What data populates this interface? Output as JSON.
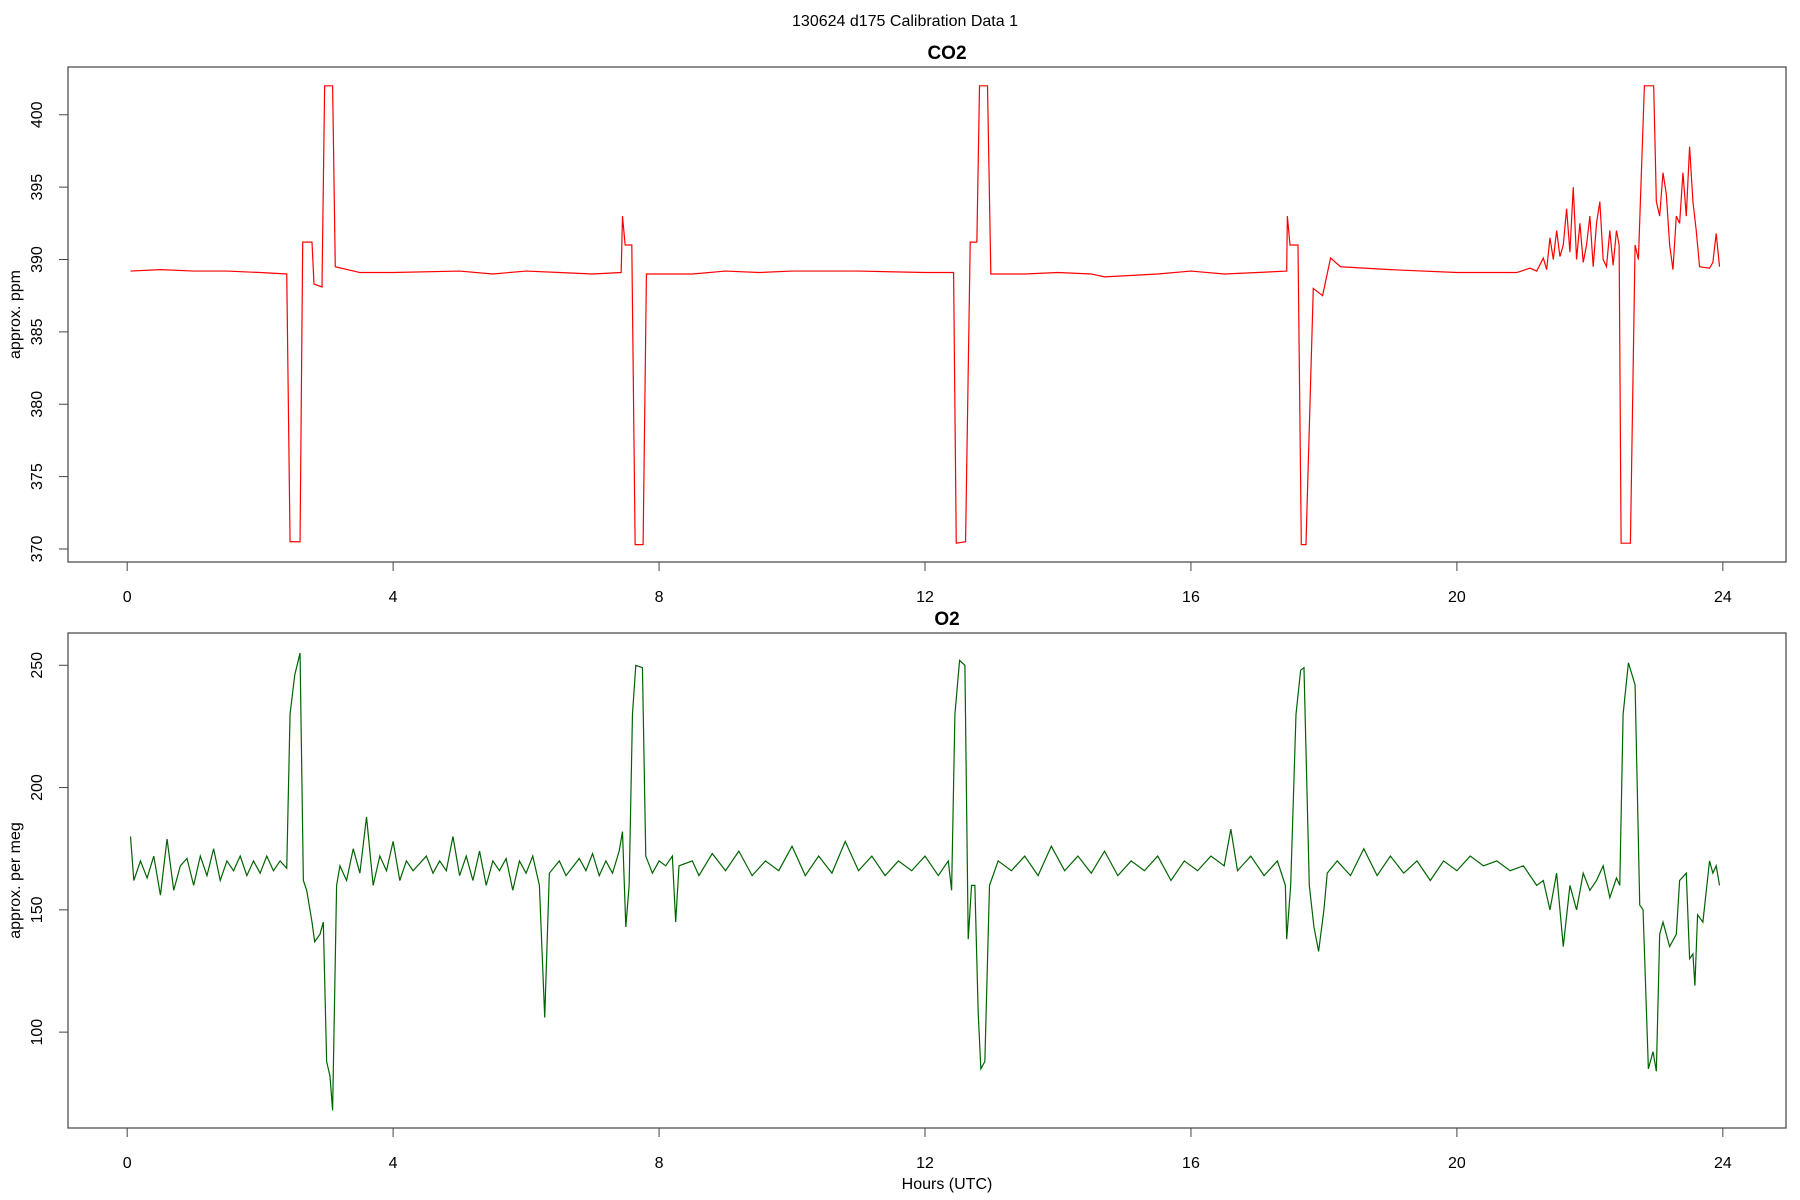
{
  "title": "130624   d175   Calibration Data 1",
  "chart_data": [
    {
      "type": "line",
      "title": "CO2",
      "ylabel": "approx. ppm",
      "color": "#ff0000",
      "xlim": [
        -0.89,
        24.95
      ],
      "xticks": [
        0,
        4,
        8,
        12,
        16,
        20,
        24
      ],
      "ylim": [
        369.1,
        403.3
      ],
      "yticks": [
        370,
        375,
        380,
        385,
        390,
        395,
        400
      ],
      "x": [
        0.05,
        0.5,
        1.0,
        1.5,
        2.0,
        2.4,
        2.45,
        2.6,
        2.64,
        2.78,
        2.81,
        2.93,
        2.97,
        3.09,
        3.13,
        3.5,
        4.0,
        5.0,
        5.5,
        6.0,
        6.5,
        7.0,
        7.43,
        7.45,
        7.49,
        7.59,
        7.64,
        7.76,
        7.81,
        8.5,
        9.0,
        9.5,
        10,
        11,
        12,
        12.43,
        12.47,
        12.61,
        12.68,
        12.78,
        12.82,
        12.94,
        12.99,
        13.5,
        14.0,
        14.5,
        14.7,
        15.5,
        16.0,
        16.5,
        17.0,
        17.44,
        17.45,
        17.49,
        17.61,
        17.66,
        17.73,
        17.84,
        17.98,
        18.1,
        18.25,
        19.0,
        20.0,
        20.9,
        21.1,
        21.2,
        21.3,
        21.35,
        21.4,
        21.45,
        21.5,
        21.55,
        21.6,
        21.65,
        21.7,
        21.75,
        21.8,
        21.85,
        21.9,
        21.95,
        22.0,
        22.05,
        22.1,
        22.15,
        22.2,
        22.25,
        22.3,
        22.35,
        22.4,
        22.44,
        22.47,
        22.61,
        22.68,
        22.73,
        22.82,
        22.96,
        23.0,
        23.05,
        23.1,
        23.15,
        23.2,
        23.25,
        23.3,
        23.35,
        23.4,
        23.45,
        23.5,
        23.55,
        23.6,
        23.65,
        23.8,
        23.85,
        23.9,
        23.95
      ],
      "values": [
        389.2,
        389.3,
        389.2,
        389.2,
        389.1,
        389.0,
        370.5,
        370.5,
        391.2,
        391.2,
        388.3,
        388.1,
        402,
        402,
        389.5,
        389.1,
        389.1,
        389.2,
        389.0,
        389.2,
        389.1,
        389.0,
        389.1,
        393,
        391,
        391,
        370.3,
        370.3,
        389.0,
        389.0,
        389.2,
        389.1,
        389.2,
        389.2,
        389.1,
        389.1,
        370.4,
        370.5,
        391.2,
        391.2,
        402,
        402,
        389.0,
        389.0,
        389.1,
        389.0,
        388.8,
        389.0,
        389.2,
        389.0,
        389.1,
        389.2,
        393,
        391,
        391,
        370.3,
        370.3,
        388,
        387.5,
        390.1,
        389.5,
        389.3,
        389.1,
        389.1,
        389.4,
        389.2,
        390.1,
        389.3,
        391.5,
        390.0,
        392.0,
        390.2,
        391.0,
        393.5,
        390.5,
        395.0,
        390.0,
        392.5,
        389.8,
        391.0,
        393.0,
        389.5,
        392.5,
        394.0,
        390.0,
        389.5,
        392.0,
        389.6,
        392.0,
        391.0,
        370.4,
        370.4,
        391.0,
        390.0,
        402,
        402,
        394.0,
        393.0,
        396.0,
        394.5,
        391.0,
        389.3,
        393.0,
        392.5,
        396.0,
        393.0,
        397.8,
        394.0,
        392.0,
        389.5,
        389.4,
        389.8,
        391.8,
        389.5
      ]
    },
    {
      "type": "line",
      "title": "O2",
      "ylabel": "approx. per meg",
      "xlabel": "Hours (UTC)",
      "color": "#006400",
      "xlim": [
        -0.89,
        24.95
      ],
      "xticks": [
        0,
        4,
        8,
        12,
        16,
        20,
        24
      ],
      "ylim": [
        60.8,
        263.2
      ],
      "yticks": [
        100,
        150,
        200,
        250
      ],
      "x": [
        0.05,
        0.1,
        0.2,
        0.3,
        0.4,
        0.5,
        0.6,
        0.7,
        0.8,
        0.9,
        1.0,
        1.1,
        1.2,
        1.3,
        1.4,
        1.5,
        1.6,
        1.7,
        1.8,
        1.9,
        2.0,
        2.1,
        2.2,
        2.3,
        2.4,
        2.45,
        2.52,
        2.6,
        2.65,
        2.7,
        2.78,
        2.82,
        2.9,
        2.95,
        3.0,
        3.05,
        3.09,
        3.15,
        3.2,
        3.3,
        3.4,
        3.5,
        3.6,
        3.7,
        3.8,
        3.9,
        4.0,
        4.1,
        4.2,
        4.3,
        4.5,
        4.6,
        4.7,
        4.8,
        4.9,
        5.0,
        5.1,
        5.2,
        5.3,
        5.4,
        5.5,
        5.6,
        5.7,
        5.8,
        5.9,
        6.0,
        6.1,
        6.2,
        6.28,
        6.35,
        6.5,
        6.6,
        6.8,
        6.9,
        7.0,
        7.1,
        7.2,
        7.3,
        7.4,
        7.45,
        7.5,
        7.55,
        7.6,
        7.65,
        7.75,
        7.8,
        7.9,
        8.0,
        8.1,
        8.2,
        8.25,
        8.3,
        8.5,
        8.6,
        8.8,
        9.0,
        9.2,
        9.4,
        9.6,
        9.8,
        10.0,
        10.2,
        10.4,
        10.6,
        10.8,
        11.0,
        11.2,
        11.4,
        11.6,
        11.8,
        12.0,
        12.2,
        12.35,
        12.4,
        12.45,
        12.52,
        12.6,
        12.65,
        12.7,
        12.75,
        12.8,
        12.84,
        12.9,
        12.97,
        13.1,
        13.3,
        13.5,
        13.7,
        13.9,
        14.1,
        14.3,
        14.5,
        14.7,
        14.9,
        15.1,
        15.3,
        15.5,
        15.7,
        15.9,
        16.1,
        16.3,
        16.5,
        16.6,
        16.7,
        16.9,
        17.1,
        17.3,
        17.42,
        17.44,
        17.5,
        17.58,
        17.65,
        17.7,
        17.78,
        17.85,
        17.92,
        18.0,
        18.05,
        18.2,
        18.4,
        18.6,
        18.8,
        19.0,
        19.2,
        19.4,
        19.6,
        19.8,
        20.0,
        20.2,
        20.4,
        20.6,
        20.8,
        21.0,
        21.2,
        21.3,
        21.4,
        21.5,
        21.6,
        21.7,
        21.8,
        21.9,
        22.0,
        22.1,
        22.2,
        22.3,
        22.4,
        22.45,
        22.5,
        22.58,
        22.68,
        22.75,
        22.8,
        22.88,
        22.95,
        23.0,
        23.05,
        23.1,
        23.2,
        23.3,
        23.35,
        23.45,
        23.5,
        23.55,
        23.58,
        23.62,
        23.7,
        23.8,
        23.85,
        23.9,
        23.95
      ],
      "values": [
        180,
        162,
        170,
        163,
        172,
        156,
        179,
        158,
        168,
        171,
        160,
        172,
        164,
        175,
        162,
        170,
        166,
        172,
        164,
        170,
        165,
        172,
        166,
        170,
        167,
        230,
        246,
        255,
        162,
        158,
        145,
        137,
        140,
        145,
        88,
        82,
        68,
        160,
        168,
        162,
        175,
        165,
        188,
        160,
        172,
        166,
        178,
        162,
        170,
        166,
        172,
        165,
        170,
        166,
        180,
        164,
        172,
        162,
        174,
        160,
        170,
        166,
        171,
        158,
        170,
        165,
        172,
        160,
        106,
        165,
        170,
        164,
        171,
        166,
        173,
        164,
        170,
        165,
        174,
        182,
        143,
        160,
        230,
        250,
        249,
        172,
        165,
        170,
        168,
        172,
        145,
        168,
        170,
        164,
        173,
        166,
        174,
        164,
        170,
        166,
        176,
        164,
        172,
        165,
        178,
        166,
        172,
        164,
        170,
        166,
        172,
        164,
        170,
        158,
        230,
        252,
        250,
        138,
        160,
        160,
        108,
        85,
        88,
        160,
        170,
        166,
        172,
        164,
        176,
        166,
        172,
        165,
        174,
        164,
        170,
        166,
        172,
        162,
        170,
        166,
        172,
        168,
        183,
        166,
        172,
        164,
        170,
        160,
        138,
        160,
        230,
        248,
        249,
        160,
        143,
        133,
        150,
        165,
        170,
        164,
        175,
        164,
        172,
        165,
        170,
        162,
        170,
        166,
        172,
        168,
        170,
        166,
        168,
        160,
        162,
        150,
        165,
        135,
        160,
        150,
        165,
        158,
        162,
        168,
        155,
        163,
        160,
        230,
        251,
        242,
        152,
        150,
        85,
        92,
        84,
        140,
        145,
        135,
        140,
        162,
        165,
        130,
        132,
        119,
        148,
        145,
        170,
        165,
        168,
        160
      ]
    }
  ]
}
